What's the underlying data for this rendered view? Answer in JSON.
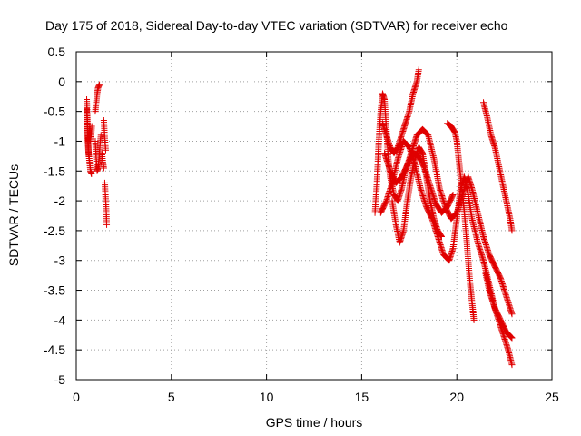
{
  "chart_data": {
    "type": "scatter",
    "title": "Day 175 of 2018, Sidereal Day-to-day VTEC variation (SDTVAR) for receiver echo",
    "xlabel": "GPS time / hours",
    "ylabel": "SDTVAR / TECUs",
    "xlim": [
      0,
      25
    ],
    "ylim": [
      -5,
      0.5
    ],
    "xticks": [
      "0",
      "5",
      "10",
      "15",
      "20",
      "25"
    ],
    "yticks": [
      "0.5",
      "0",
      "-0.5",
      "-1",
      "-1.5",
      "-2",
      "-2.5",
      "-3",
      "-3.5",
      "-4",
      "-4.5",
      "-5"
    ],
    "xtick_values": [
      0,
      5,
      10,
      15,
      20,
      25
    ],
    "ytick_values": [
      0.5,
      0,
      -0.5,
      -1,
      -1.5,
      -2,
      -2.5,
      -3,
      -3.5,
      -4,
      -4.5,
      -5
    ],
    "grid": true,
    "marker": "plus",
    "marker_color": "#e00000",
    "series": [
      {
        "tracks": [
          [
            [
              0.55,
              -0.3
            ],
            [
              0.58,
              -0.6
            ],
            [
              0.6,
              -0.85
            ],
            [
              0.62,
              -1.0
            ],
            [
              0.65,
              -1.2
            ],
            [
              0.7,
              -1.35
            ],
            [
              0.75,
              -1.5
            ],
            [
              0.8,
              -1.55
            ]
          ],
          [
            [
              0.55,
              -0.45
            ],
            [
              0.58,
              -0.7
            ],
            [
              0.62,
              -1.05
            ],
            [
              0.66,
              -1.25
            ]
          ],
          [
            [
              0.72,
              -1.0
            ],
            [
              0.78,
              -0.9
            ],
            [
              0.82,
              -0.75
            ]
          ],
          [
            [
              1.0,
              -0.5
            ],
            [
              1.05,
              -0.35
            ],
            [
              1.1,
              -0.2
            ],
            [
              1.15,
              -0.1
            ],
            [
              1.22,
              -0.05
            ]
          ],
          [
            [
              1.0,
              -1.0
            ],
            [
              1.05,
              -1.3
            ],
            [
              1.1,
              -1.5
            ],
            [
              1.15,
              -1.45
            ],
            [
              1.2,
              -1.3
            ],
            [
              1.25,
              -1.05
            ],
            [
              1.3,
              -0.9
            ]
          ],
          [
            [
              1.35,
              -1.2
            ],
            [
              1.4,
              -1.35
            ],
            [
              1.45,
              -1.45
            ]
          ],
          [
            [
              1.45,
              -0.65
            ],
            [
              1.5,
              -0.95
            ],
            [
              1.55,
              -1.15
            ]
          ],
          [
            [
              1.5,
              -1.7
            ],
            [
              1.55,
              -2.0
            ],
            [
              1.58,
              -2.2
            ],
            [
              1.6,
              -2.4
            ]
          ]
        ]
      },
      {
        "tracks": [
          [
            [
              15.7,
              -2.2
            ],
            [
              15.8,
              -1.7
            ],
            [
              15.9,
              -1.0
            ],
            [
              16.0,
              -0.5
            ],
            [
              16.1,
              -0.2
            ],
            [
              16.2,
              -0.3
            ],
            [
              16.3,
              -0.8
            ],
            [
              16.4,
              -1.3
            ],
            [
              16.5,
              -1.6
            ],
            [
              16.7,
              -1.9
            ],
            [
              16.9,
              -2.0
            ],
            [
              17.1,
              -1.8
            ],
            [
              17.3,
              -1.5
            ],
            [
              17.5,
              -1.3
            ],
            [
              17.7,
              -1.1
            ],
            [
              17.9,
              -0.9
            ],
            [
              18.2,
              -0.8
            ],
            [
              18.5,
              -0.9
            ],
            [
              18.8,
              -1.3
            ],
            [
              19.1,
              -1.8
            ],
            [
              19.4,
              -2.1
            ],
            [
              19.7,
              -2.3
            ],
            [
              20.0,
              -2.2
            ],
            [
              20.2,
              -2.0
            ],
            [
              20.4,
              -1.8
            ],
            [
              20.6,
              -1.6
            ],
            [
              20.8,
              -1.8
            ],
            [
              21.1,
              -2.2
            ],
            [
              21.4,
              -2.6
            ],
            [
              21.7,
              -2.9
            ],
            [
              22.0,
              -3.1
            ],
            [
              22.3,
              -3.3
            ],
            [
              22.6,
              -3.6
            ],
            [
              22.9,
              -3.9
            ]
          ],
          [
            [
              16.0,
              -2.2
            ],
            [
              16.3,
              -2.0
            ],
            [
              16.6,
              -1.7
            ],
            [
              16.9,
              -1.3
            ],
            [
              17.2,
              -1.0
            ],
            [
              17.5,
              -1.1
            ],
            [
              17.8,
              -1.4
            ],
            [
              18.1,
              -1.8
            ],
            [
              18.4,
              -2.1
            ],
            [
              18.7,
              -2.3
            ],
            [
              19.0,
              -2.6
            ],
            [
              19.3,
              -2.9
            ],
            [
              19.6,
              -3.0
            ],
            [
              19.8,
              -2.8
            ],
            [
              20.0,
              -2.3
            ],
            [
              20.2,
              -1.8
            ],
            [
              20.4,
              -1.6
            ],
            [
              20.6,
              -1.9
            ],
            [
              20.8,
              -2.3
            ],
            [
              21.1,
              -2.7
            ],
            [
              21.4,
              -3.0
            ],
            [
              21.7,
              -3.4
            ],
            [
              22.0,
              -3.8
            ],
            [
              22.3,
              -4.0
            ],
            [
              22.6,
              -4.2
            ],
            [
              22.9,
              -4.3
            ]
          ],
          [
            [
              16.1,
              -0.7
            ],
            [
              16.3,
              -0.9
            ],
            [
              16.5,
              -1.1
            ],
            [
              16.7,
              -1.2
            ],
            [
              16.9,
              -1.1
            ],
            [
              17.1,
              -0.9
            ],
            [
              17.3,
              -0.7
            ],
            [
              17.5,
              -0.5
            ],
            [
              17.7,
              -0.2
            ],
            [
              17.9,
              0.0
            ],
            [
              18.0,
              0.2
            ]
          ],
          [
            [
              16.6,
              -2.0
            ],
            [
              16.8,
              -2.4
            ],
            [
              17.0,
              -2.7
            ],
            [
              17.2,
              -2.5
            ],
            [
              17.4,
              -2.0
            ],
            [
              17.6,
              -1.6
            ],
            [
              17.8,
              -1.3
            ],
            [
              18.0,
              -1.1
            ],
            [
              18.2,
              -1.2
            ],
            [
              18.4,
              -1.6
            ],
            [
              18.6,
              -2.0
            ],
            [
              18.8,
              -2.3
            ],
            [
              19.0,
              -2.5
            ],
            [
              19.2,
              -2.6
            ]
          ],
          [
            [
              19.5,
              -0.7
            ],
            [
              19.7,
              -0.75
            ],
            [
              19.9,
              -0.85
            ],
            [
              20.0,
              -1.0
            ],
            [
              20.1,
              -1.3
            ],
            [
              20.2,
              -1.6
            ],
            [
              20.3,
              -1.9
            ],
            [
              20.4,
              -2.2
            ],
            [
              20.5,
              -2.6
            ],
            [
              20.6,
              -3.0
            ],
            [
              20.7,
              -3.4
            ],
            [
              20.8,
              -3.7
            ],
            [
              20.9,
              -4.0
            ]
          ],
          [
            [
              21.4,
              -0.35
            ],
            [
              21.6,
              -0.6
            ],
            [
              21.8,
              -0.9
            ],
            [
              22.0,
              -1.1
            ],
            [
              22.2,
              -1.4
            ],
            [
              22.4,
              -1.7
            ],
            [
              22.6,
              -2.0
            ],
            [
              22.8,
              -2.3
            ],
            [
              22.9,
              -2.5
            ]
          ],
          [
            [
              21.5,
              -3.2
            ],
            [
              21.7,
              -3.5
            ],
            [
              21.9,
              -3.7
            ],
            [
              22.1,
              -3.9
            ],
            [
              22.3,
              -4.1
            ],
            [
              22.5,
              -4.3
            ],
            [
              22.7,
              -4.5
            ],
            [
              22.9,
              -4.75
            ]
          ],
          [
            [
              16.2,
              -1.2
            ],
            [
              16.5,
              -1.5
            ],
            [
              16.8,
              -1.7
            ],
            [
              17.1,
              -1.6
            ],
            [
              17.4,
              -1.4
            ],
            [
              17.7,
              -1.2
            ],
            [
              18.0,
              -1.25
            ],
            [
              18.3,
              -1.45
            ],
            [
              18.6,
              -1.75
            ],
            [
              18.9,
              -2.05
            ],
            [
              19.2,
              -2.2
            ],
            [
              19.5,
              -2.1
            ],
            [
              19.8,
              -1.9
            ]
          ]
        ]
      }
    ]
  }
}
